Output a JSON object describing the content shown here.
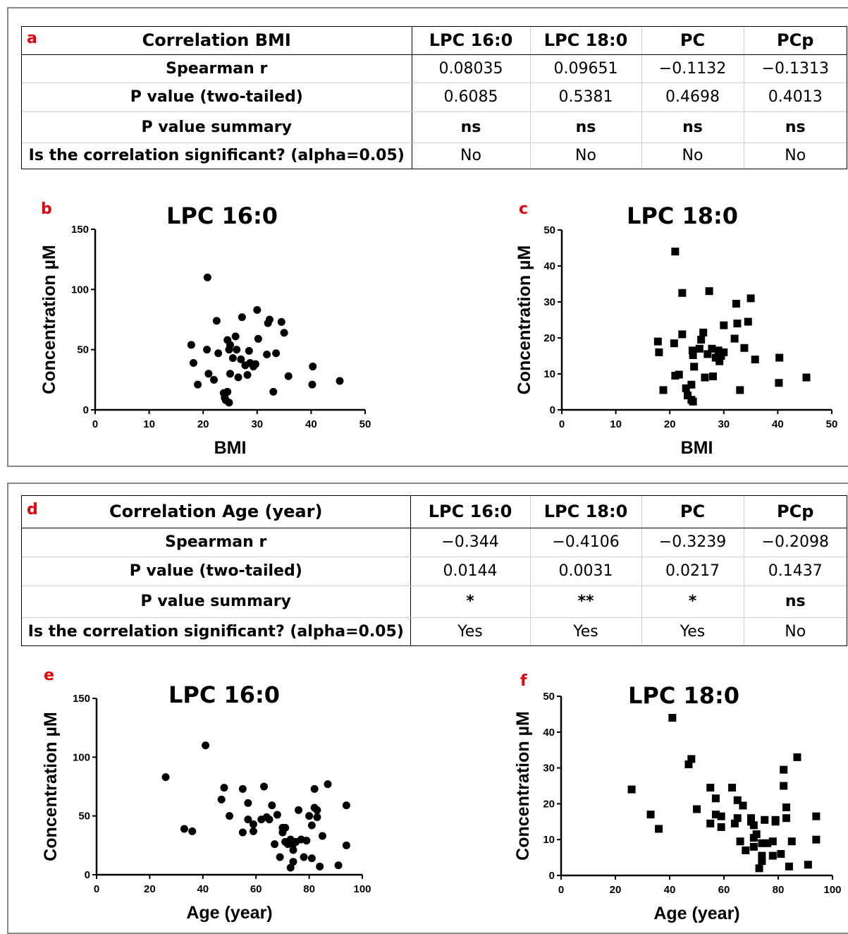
{
  "colors": {
    "panel_label": "#e8000b",
    "frame": "#8a8a8a",
    "marker": "#000000"
  },
  "tables": [
    {
      "panel_label": "a",
      "title": "Correlation BMI",
      "columns": [
        "LPC 16:0",
        "LPC 18:0",
        "PC",
        "PCp"
      ],
      "rows": [
        {
          "label": "Spearman r",
          "values": [
            "0.08035",
            "0.09651",
            "−0.1132",
            "−0.1313"
          ]
        },
        {
          "label": "P value (two-tailed)",
          "values": [
            "0.6085",
            "0.5381",
            "0.4698",
            "0.4013"
          ]
        },
        {
          "label": "P value summary",
          "values": [
            "ns",
            "ns",
            "ns",
            "ns"
          ]
        },
        {
          "label": "Is the correlation significant? (alpha=0.05)",
          "values": [
            "No",
            "No",
            "No",
            "No"
          ]
        }
      ]
    },
    {
      "panel_label": "d",
      "title": "Correlation Age (year)",
      "columns": [
        "LPC 16:0",
        "LPC 18:0",
        "PC",
        "PCp"
      ],
      "rows": [
        {
          "label": "Spearman r",
          "values": [
            "−0.344",
            "−0.4106",
            "−0.3239",
            "−0.2098"
          ]
        },
        {
          "label": "P value (two-tailed)",
          "values": [
            "0.0144",
            "0.0031",
            "0.0217",
            "0.1437"
          ]
        },
        {
          "label": "P value summary",
          "values": [
            "*",
            "**",
            "*",
            "ns"
          ]
        },
        {
          "label": "Is the correlation significant? (alpha=0.05)",
          "values": [
            "Yes",
            "Yes",
            "Yes",
            "No"
          ]
        }
      ]
    }
  ],
  "chart_data": [
    {
      "panel_label": "b",
      "type": "scatter",
      "marker": "circle",
      "title": "LPC 16:0",
      "xlabel": "BMI",
      "ylabel": "Concentration µM",
      "xlim": [
        0,
        50
      ],
      "ylim": [
        0,
        150
      ],
      "xticks": [
        0,
        10,
        20,
        30,
        40,
        50
      ],
      "yticks": [
        0,
        50,
        100,
        150
      ],
      "points": [
        [
          17.8,
          54
        ],
        [
          18.2,
          39
        ],
        [
          19,
          21
        ],
        [
          20.7,
          50
        ],
        [
          20.8,
          110
        ],
        [
          21,
          30
        ],
        [
          22,
          25
        ],
        [
          22.5,
          74
        ],
        [
          22.8,
          47
        ],
        [
          23.8,
          14
        ],
        [
          24,
          10
        ],
        [
          24.2,
          8
        ],
        [
          24.5,
          15
        ],
        [
          24.5,
          58
        ],
        [
          24.8,
          6
        ],
        [
          24.8,
          50
        ],
        [
          25,
          30
        ],
        [
          25,
          54
        ],
        [
          25.5,
          43
        ],
        [
          26,
          61
        ],
        [
          26.2,
          50
        ],
        [
          26.5,
          27
        ],
        [
          27,
          42
        ],
        [
          27.2,
          77
        ],
        [
          27.8,
          37
        ],
        [
          28.2,
          29
        ],
        [
          28.5,
          49
        ],
        [
          28.7,
          39
        ],
        [
          29.3,
          36
        ],
        [
          29.7,
          38
        ],
        [
          30,
          83
        ],
        [
          30.2,
          59
        ],
        [
          31.8,
          46
        ],
        [
          32,
          72
        ],
        [
          32.3,
          75
        ],
        [
          33,
          15
        ],
        [
          33.5,
          47
        ],
        [
          34.5,
          73
        ],
        [
          35,
          64
        ],
        [
          35.8,
          28
        ],
        [
          40.2,
          21
        ],
        [
          40.3,
          36
        ],
        [
          45.3,
          24
        ]
      ]
    },
    {
      "panel_label": "c",
      "type": "scatter",
      "marker": "square",
      "title": "LPC 18:0",
      "xlabel": "BMI",
      "ylabel": "Concentration µM",
      "xlim": [
        0,
        50
      ],
      "ylim": [
        0,
        50
      ],
      "xticks": [
        0,
        10,
        20,
        30,
        40,
        50
      ],
      "yticks": [
        0,
        10,
        20,
        30,
        40,
        50
      ],
      "points": [
        [
          17.8,
          19
        ],
        [
          18,
          16
        ],
        [
          18.8,
          5.5
        ],
        [
          20.8,
          18.5
        ],
        [
          21,
          9.5
        ],
        [
          21,
          44
        ],
        [
          21.7,
          9.8
        ],
        [
          22.3,
          21
        ],
        [
          22.3,
          32.5
        ],
        [
          23,
          6
        ],
        [
          23.3,
          4
        ],
        [
          24,
          7
        ],
        [
          24,
          2.8
        ],
        [
          24.2,
          16.5
        ],
        [
          24.3,
          2.3
        ],
        [
          24.3,
          15.2
        ],
        [
          24.5,
          12
        ],
        [
          25.5,
          17
        ],
        [
          25.8,
          19.5
        ],
        [
          26.2,
          21.5
        ],
        [
          26.5,
          9
        ],
        [
          27,
          15.5
        ],
        [
          27.3,
          33
        ],
        [
          27.8,
          17
        ],
        [
          28,
          9.3
        ],
        [
          28.5,
          14.5
        ],
        [
          29,
          16.5
        ],
        [
          29.2,
          13.5
        ],
        [
          29.5,
          15
        ],
        [
          30,
          16
        ],
        [
          30,
          23.5
        ],
        [
          32,
          19.8
        ],
        [
          32.3,
          29.5
        ],
        [
          32.5,
          24
        ],
        [
          33,
          5.5
        ],
        [
          33.8,
          17.2
        ],
        [
          34.5,
          24.5
        ],
        [
          35,
          31
        ],
        [
          35.8,
          14
        ],
        [
          40.2,
          7.5
        ],
        [
          40.3,
          14.5
        ],
        [
          45.3,
          9
        ]
      ]
    },
    {
      "panel_label": "e",
      "type": "scatter",
      "marker": "circle",
      "title": "LPC 16:0",
      "xlabel": "Age (year)",
      "ylabel": "Concentration µM",
      "xlim": [
        0,
        100
      ],
      "ylim": [
        0,
        150
      ],
      "xticks": [
        0,
        20,
        40,
        60,
        80,
        100
      ],
      "yticks": [
        0,
        50,
        100,
        150
      ],
      "points": [
        [
          26,
          83
        ],
        [
          33,
          39
        ],
        [
          36,
          37
        ],
        [
          41,
          110
        ],
        [
          47,
          64
        ],
        [
          48,
          74
        ],
        [
          50,
          50
        ],
        [
          55,
          36
        ],
        [
          55,
          73
        ],
        [
          57,
          61
        ],
        [
          57,
          47
        ],
        [
          59,
          43
        ],
        [
          59,
          37
        ],
        [
          62,
          47
        ],
        [
          63,
          75
        ],
        [
          64,
          49
        ],
        [
          65,
          47
        ],
        [
          66,
          59
        ],
        [
          67,
          26
        ],
        [
          68,
          51
        ],
        [
          69,
          15
        ],
        [
          70,
          36
        ],
        [
          70,
          40
        ],
        [
          71,
          28
        ],
        [
          71,
          40
        ],
        [
          72,
          26
        ],
        [
          73,
          6
        ],
        [
          73,
          30
        ],
        [
          74,
          26
        ],
        [
          74,
          21
        ],
        [
          74,
          11
        ],
        [
          75,
          28
        ],
        [
          76,
          55
        ],
        [
          77,
          30
        ],
        [
          78,
          15
        ],
        [
          79,
          29
        ],
        [
          80,
          50
        ],
        [
          81,
          42
        ],
        [
          81,
          14
        ],
        [
          82,
          57
        ],
        [
          82,
          73
        ],
        [
          83,
          55
        ],
        [
          83,
          49
        ],
        [
          84,
          7
        ],
        [
          85,
          33
        ],
        [
          87,
          77
        ],
        [
          91,
          8
        ],
        [
          94,
          59
        ],
        [
          94,
          25
        ]
      ]
    },
    {
      "panel_label": "f",
      "type": "scatter",
      "marker": "square",
      "title": "LPC 18:0",
      "xlabel": "Age (year)",
      "ylabel": "Concentration µM",
      "xlim": [
        0,
        100
      ],
      "ylim": [
        0,
        50
      ],
      "xticks": [
        0,
        20,
        40,
        60,
        80,
        100
      ],
      "yticks": [
        0,
        10,
        20,
        30,
        40,
        50
      ],
      "points": [
        [
          26,
          24
        ],
        [
          33,
          17
        ],
        [
          36,
          13
        ],
        [
          41,
          44
        ],
        [
          47,
          31
        ],
        [
          48,
          32.5
        ],
        [
          50,
          18.5
        ],
        [
          55,
          24.5
        ],
        [
          55,
          14.5
        ],
        [
          57,
          21.5
        ],
        [
          57,
          17
        ],
        [
          59,
          13.5
        ],
        [
          59,
          16.5
        ],
        [
          63,
          24.5
        ],
        [
          64,
          14.5
        ],
        [
          65,
          21
        ],
        [
          65,
          16
        ],
        [
          66,
          9.5
        ],
        [
          67,
          19.5
        ],
        [
          68,
          7
        ],
        [
          70,
          16
        ],
        [
          70,
          15
        ],
        [
          71,
          14
        ],
        [
          71,
          10.5
        ],
        [
          71,
          8
        ],
        [
          72,
          11.5
        ],
        [
          73,
          2
        ],
        [
          74,
          4
        ],
        [
          74,
          9
        ],
        [
          74,
          5.5
        ],
        [
          75,
          15.5
        ],
        [
          76,
          9
        ],
        [
          78,
          9.5
        ],
        [
          78,
          5.5
        ],
        [
          79,
          15.5
        ],
        [
          79,
          15
        ],
        [
          81,
          6
        ],
        [
          82,
          29.5
        ],
        [
          82,
          25
        ],
        [
          83,
          19
        ],
        [
          83,
          16
        ],
        [
          84,
          2.5
        ],
        [
          85,
          9.5
        ],
        [
          87,
          33
        ],
        [
          91,
          3
        ],
        [
          94,
          16.5
        ],
        [
          94,
          10
        ]
      ]
    }
  ]
}
